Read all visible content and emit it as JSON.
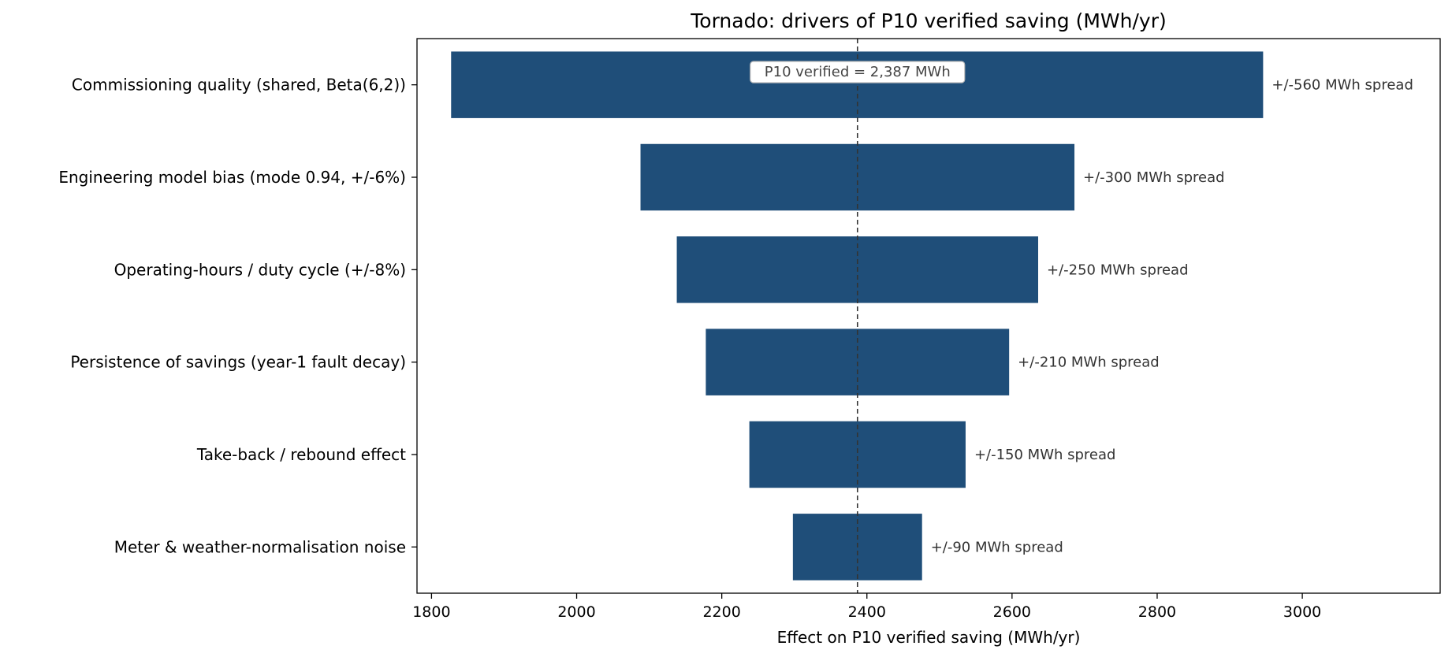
{
  "chart_data": {
    "type": "bar",
    "orientation": "horizontal",
    "title": "Tornado: drivers of P10 verified saving  (MWh/yr)",
    "xlabel": "Effect on P10 verified saving  (MWh/yr)",
    "ylabel": "",
    "xlim": [
      1780,
      3190
    ],
    "xticks": [
      1800,
      2000,
      2200,
      2400,
      2600,
      2800,
      3000
    ],
    "xtick_labels": [
      "1800",
      "2000",
      "2200",
      "2400",
      "2600",
      "2800",
      "3000"
    ],
    "grid": false,
    "bar_color": "#1f4e79",
    "categories": [
      "Commissioning quality  (shared, Beta(6,2))",
      "Engineering model bias  (mode 0.94, +/-6%)",
      "Operating-hours / duty cycle  (+/-8%)",
      "Persistence of savings  (year-1 fault decay)",
      "Take-back / rebound effect",
      "Meter & weather-normalisation noise"
    ],
    "low": [
      1827,
      2088,
      2138,
      2178,
      2238,
      2298
    ],
    "high": [
      2946,
      2686,
      2636,
      2596,
      2536,
      2476
    ],
    "spread_labels": [
      "+/-560 MWh spread",
      "+/-300 MWh spread",
      "+/-250 MWh spread",
      "+/-210 MWh spread",
      "+/-150 MWh spread",
      "+/-90 MWh spread"
    ],
    "reference": {
      "value": 2387,
      "label": "P10 verified = 2,387 MWh"
    }
  }
}
